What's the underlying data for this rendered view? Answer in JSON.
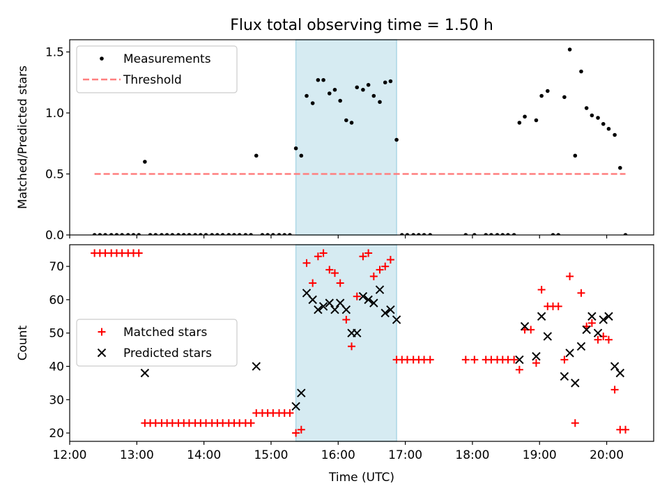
{
  "figure": {
    "title": "Flux total observing time = 1.50 h"
  },
  "chart_data": [
    {
      "type": "scatter",
      "ylabel": "Matched/Predicted stars",
      "xlim": [
        12.0,
        20.7
      ],
      "ylim": [
        0,
        1.6
      ],
      "yticks": [
        "0.0",
        "0.5",
        "1.0",
        "1.5"
      ],
      "highlight_span": [
        15.37,
        16.87
      ],
      "legend_placement": "top-left",
      "series": [
        {
          "name": "Measurements",
          "marker": "dot",
          "color": "#000000",
          "x": [
            12.37,
            12.45,
            12.53,
            12.62,
            12.7,
            12.78,
            12.87,
            12.95,
            13.03,
            13.12,
            13.2,
            13.28,
            13.37,
            13.45,
            13.53,
            13.62,
            13.7,
            13.78,
            13.87,
            13.95,
            14.03,
            14.12,
            14.2,
            14.28,
            14.37,
            14.45,
            14.53,
            14.62,
            14.7,
            14.78,
            14.87,
            14.95,
            15.03,
            15.12,
            15.2,
            15.28,
            15.37,
            15.45,
            15.53,
            15.62,
            15.7,
            15.78,
            15.87,
            15.95,
            16.03,
            16.12,
            16.2,
            16.28,
            16.37,
            16.45,
            16.53,
            16.62,
            16.7,
            16.78,
            16.87,
            16.95,
            17.03,
            17.12,
            17.2,
            17.28,
            17.37,
            17.9,
            18.03,
            18.2,
            18.28,
            18.37,
            18.45,
            18.53,
            18.62,
            18.7,
            18.78,
            18.95,
            19.03,
            19.12,
            19.2,
            19.28,
            19.37,
            19.45,
            19.53,
            19.62,
            19.7,
            19.78,
            19.87,
            19.95,
            20.03,
            20.12,
            20.2,
            20.28
          ],
          "y": [
            0,
            0,
            0,
            0,
            0,
            0,
            0,
            0,
            0,
            0.6,
            0,
            0,
            0,
            0,
            0,
            0,
            0,
            0,
            0,
            0,
            0,
            0,
            0,
            0,
            0,
            0,
            0,
            0,
            0,
            0.65,
            0,
            0,
            0,
            0,
            0,
            0,
            0.71,
            0.65,
            1.14,
            1.08,
            1.27,
            1.27,
            1.16,
            1.19,
            1.1,
            0.94,
            0.92,
            1.21,
            1.19,
            1.23,
            1.14,
            1.09,
            1.25,
            1.26,
            0.78,
            0,
            0,
            0,
            0,
            0,
            0,
            0,
            0,
            0,
            0,
            0,
            0,
            0,
            0,
            0.92,
            0.97,
            0.94,
            1.14,
            1.18,
            0,
            0,
            1.13,
            1.52,
            0.65,
            1.34,
            1.04,
            0.98,
            0.96,
            0.91,
            0.87,
            0.82,
            0.55,
            0
          ]
        },
        {
          "name": "Threshold",
          "marker": "dashed-line",
          "color": "#ff7f7f",
          "x": [
            12.37,
            20.28
          ],
          "y": [
            0.5,
            0.5
          ]
        }
      ]
    },
    {
      "type": "scatter",
      "xlabel": "Time (UTC)",
      "ylabel": "Count",
      "xlim": [
        12.0,
        20.7
      ],
      "ylim": [
        17.5,
        76.5
      ],
      "yticks": [
        "20",
        "30",
        "40",
        "50",
        "60",
        "70"
      ],
      "xticks": [
        "12:00",
        "13:00",
        "14:00",
        "15:00",
        "16:00",
        "17:00",
        "18:00",
        "19:00",
        "20:00"
      ],
      "highlight_span": [
        15.37,
        16.87
      ],
      "legend_placement": "center-left",
      "series": [
        {
          "name": "Matched stars",
          "marker": "plus",
          "color": "#ff0000",
          "x": [
            12.37,
            12.45,
            12.53,
            12.62,
            12.7,
            12.78,
            12.87,
            12.95,
            13.03,
            13.12,
            13.2,
            13.28,
            13.37,
            13.45,
            13.53,
            13.62,
            13.7,
            13.78,
            13.87,
            13.95,
            14.03,
            14.12,
            14.2,
            14.28,
            14.37,
            14.45,
            14.53,
            14.62,
            14.7,
            14.78,
            14.87,
            14.95,
            15.03,
            15.12,
            15.2,
            15.28,
            15.37,
            15.45,
            15.53,
            15.62,
            15.7,
            15.78,
            15.87,
            15.95,
            16.03,
            16.12,
            16.2,
            16.28,
            16.37,
            16.45,
            16.53,
            16.62,
            16.7,
            16.78,
            16.87,
            16.95,
            17.03,
            17.12,
            17.2,
            17.28,
            17.37,
            17.9,
            18.03,
            18.2,
            18.28,
            18.37,
            18.45,
            18.53,
            18.62,
            18.7,
            18.78,
            18.87,
            18.95,
            19.03,
            19.12,
            19.2,
            19.28,
            19.37,
            19.45,
            19.53,
            19.62,
            19.7,
            19.78,
            19.87,
            19.95,
            20.03,
            20.12,
            20.2,
            20.28
          ],
          "y": [
            74,
            74,
            74,
            74,
            74,
            74,
            74,
            74,
            74,
            23,
            23,
            23,
            23,
            23,
            23,
            23,
            23,
            23,
            23,
            23,
            23,
            23,
            23,
            23,
            23,
            23,
            23,
            23,
            23,
            26,
            26,
            26,
            26,
            26,
            26,
            26,
            20,
            21,
            71,
            65,
            73,
            74,
            69,
            68,
            65,
            54,
            46,
            61,
            73,
            74,
            67,
            69,
            70,
            72,
            42,
            42,
            42,
            42,
            42,
            42,
            42,
            42,
            42,
            42,
            42,
            42,
            42,
            42,
            42,
            39,
            51,
            51,
            41,
            63,
            58,
            58,
            58,
            42,
            67,
            23,
            62,
            52,
            53,
            48,
            49,
            48,
            33,
            21,
            21
          ]
        },
        {
          "name": "Predicted stars",
          "marker": "cross",
          "color": "#000000",
          "x": [
            13.12,
            14.78,
            15.37,
            15.45,
            15.53,
            15.62,
            15.7,
            15.78,
            15.87,
            15.95,
            16.03,
            16.12,
            16.2,
            16.28,
            16.37,
            16.45,
            16.53,
            16.62,
            16.7,
            16.78,
            16.87,
            18.7,
            18.78,
            18.95,
            19.03,
            19.12,
            19.37,
            19.45,
            19.53,
            19.62,
            19.7,
            19.78,
            19.87,
            19.95,
            20.03,
            20.12,
            20.2
          ],
          "y": [
            38,
            40,
            28,
            32,
            62,
            60,
            57,
            58,
            59,
            57,
            59,
            57,
            50,
            50,
            61,
            60,
            59,
            63,
            56,
            57,
            54,
            42,
            52,
            43,
            55,
            49,
            37,
            44,
            35,
            46,
            51,
            55,
            50,
            54,
            55,
            40,
            38
          ]
        }
      ]
    }
  ]
}
